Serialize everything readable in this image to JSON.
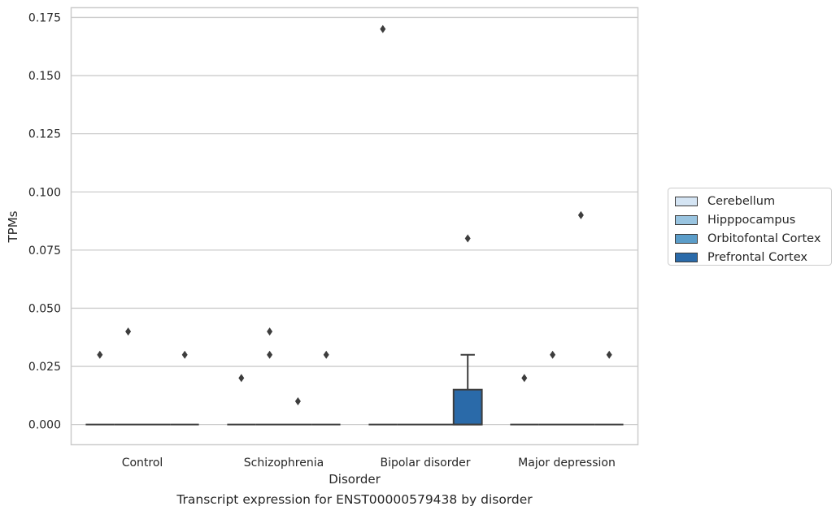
{
  "chart_data": {
    "type": "box",
    "title": "",
    "caption": "Transcript expression for ENST00000579438 by disorder",
    "xlabel": "Disorder",
    "ylabel": "TPMs",
    "ylim": [
      -0.0085,
      0.179
    ],
    "yticks": [
      "0.000",
      "0.025",
      "0.050",
      "0.075",
      "0.100",
      "0.125",
      "0.150",
      "0.175"
    ],
    "grid": true,
    "legend_position": "right",
    "categories": [
      "Control",
      "Schizophrenia",
      "Bipolar disorder",
      "Major depression"
    ],
    "series": [
      {
        "name": "Cerebellum",
        "color": "#d4e4f3",
        "boxes": [
          {
            "q1": 0,
            "median": 0,
            "q3": 0,
            "whisker_low": 0,
            "whisker_high": 0,
            "outliers": [
              0.03
            ]
          },
          {
            "q1": 0,
            "median": 0,
            "q3": 0,
            "whisker_low": 0,
            "whisker_high": 0,
            "outliers": [
              0.02
            ]
          },
          {
            "q1": 0,
            "median": 0,
            "q3": 0,
            "whisker_low": 0,
            "whisker_high": 0,
            "outliers": [
              0.17
            ]
          },
          {
            "q1": 0,
            "median": 0,
            "q3": 0,
            "whisker_low": 0,
            "whisker_high": 0,
            "outliers": [
              0.02
            ]
          }
        ]
      },
      {
        "name": "Hipppocampus",
        "color": "#99c4e0",
        "boxes": [
          {
            "q1": 0,
            "median": 0,
            "q3": 0,
            "whisker_low": 0,
            "whisker_high": 0,
            "outliers": [
              0.04
            ]
          },
          {
            "q1": 0,
            "median": 0,
            "q3": 0,
            "whisker_low": 0,
            "whisker_high": 0,
            "outliers": [
              0.04,
              0.03
            ]
          },
          {
            "q1": 0,
            "median": 0,
            "q3": 0,
            "whisker_low": 0,
            "whisker_high": 0,
            "outliers": []
          },
          {
            "q1": 0,
            "median": 0,
            "q3": 0,
            "whisker_low": 0,
            "whisker_high": 0,
            "outliers": [
              0.03
            ]
          }
        ]
      },
      {
        "name": "Orbitofontal Cortex",
        "color": "#5b9dc9",
        "boxes": [
          {
            "q1": 0,
            "median": 0,
            "q3": 0,
            "whisker_low": 0,
            "whisker_high": 0,
            "outliers": []
          },
          {
            "q1": 0,
            "median": 0,
            "q3": 0,
            "whisker_low": 0,
            "whisker_high": 0,
            "outliers": [
              0.01
            ]
          },
          {
            "q1": 0,
            "median": 0,
            "q3": 0,
            "whisker_low": 0,
            "whisker_high": 0,
            "outliers": []
          },
          {
            "q1": 0,
            "median": 0,
            "q3": 0,
            "whisker_low": 0,
            "whisker_high": 0,
            "outliers": [
              0.09
            ]
          }
        ]
      },
      {
        "name": "Prefrontal Cortex",
        "color": "#2a6aa9",
        "boxes": [
          {
            "q1": 0,
            "median": 0,
            "q3": 0,
            "whisker_low": 0,
            "whisker_high": 0,
            "outliers": [
              0.03
            ]
          },
          {
            "q1": 0,
            "median": 0,
            "q3": 0,
            "whisker_low": 0,
            "whisker_high": 0,
            "outliers": [
              0.03
            ]
          },
          {
            "q1": 0,
            "median": 0,
            "q3": 0.015,
            "whisker_low": 0,
            "whisker_high": 0.03,
            "outliers": [
              0.08
            ]
          },
          {
            "q1": 0,
            "median": 0,
            "q3": 0,
            "whisker_low": 0,
            "whisker_high": 0,
            "outliers": [
              0.03
            ]
          }
        ]
      }
    ]
  }
}
